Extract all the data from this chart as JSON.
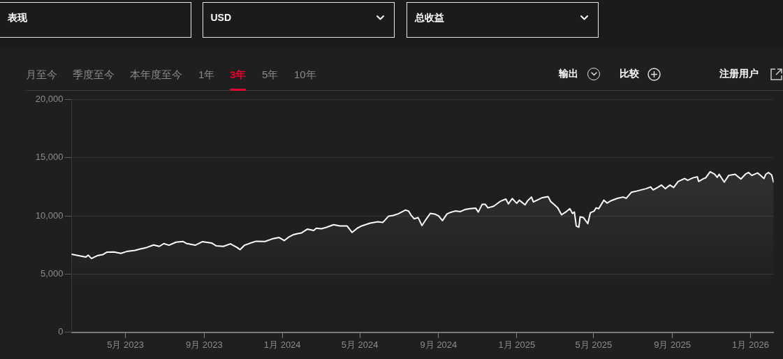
{
  "chart_data": {
    "type": "area",
    "x": [
      "2023-02-06",
      "2023-02-21",
      "2023-02-28",
      "2023-03-04",
      "2023-03-09",
      "2023-03-18",
      "2023-03-27",
      "2023-04-02",
      "2023-04-13",
      "2023-04-24",
      "2023-05-03",
      "2023-05-16",
      "2023-05-23",
      "2023-06-03",
      "2023-06-14",
      "2023-06-23",
      "2023-06-30",
      "2023-07-08",
      "2023-07-19",
      "2023-07-30",
      "2023-08-04",
      "2023-08-18",
      "2023-08-29",
      "2023-09-13",
      "2023-09-20",
      "2023-10-01",
      "2023-10-12",
      "2023-10-22",
      "2023-10-27",
      "2023-11-03",
      "2023-11-13",
      "2023-11-21",
      "2023-12-05",
      "2023-12-16",
      "2023-12-27",
      "2024-01-04",
      "2024-01-11",
      "2024-01-18",
      "2024-01-25",
      "2024-01-31",
      "2024-02-09",
      "2024-02-19",
      "2024-02-23",
      "2024-03-02",
      "2024-03-09",
      "2024-03-21",
      "2024-03-31",
      "2024-04-11",
      "2024-04-19",
      "2024-04-27",
      "2024-05-04",
      "2024-05-17",
      "2024-05-29",
      "2024-06-06",
      "2024-06-15",
      "2024-06-22",
      "2024-06-30",
      "2024-07-11",
      "2024-07-16",
      "2024-07-20",
      "2024-07-25",
      "2024-07-31",
      "2024-08-06",
      "2024-08-11",
      "2024-08-19",
      "2024-08-26",
      "2024-09-01",
      "2024-09-07",
      "2024-09-14",
      "2024-09-20",
      "2024-09-27",
      "2024-10-05",
      "2024-10-12",
      "2024-10-20",
      "2024-10-29",
      "2024-11-02",
      "2024-11-08",
      "2024-11-13",
      "2024-11-17",
      "2024-11-26",
      "2024-12-06",
      "2024-12-15",
      "2024-12-19",
      "2024-12-25",
      "2025-01-01",
      "2025-01-05",
      "2025-01-14",
      "2025-01-18",
      "2025-01-24",
      "2025-01-27",
      "2025-02-04",
      "2025-02-10",
      "2025-02-19",
      "2025-02-23",
      "2025-02-28",
      "2025-03-06",
      "2025-03-12",
      "2025-03-18",
      "2025-03-25",
      "2025-03-29",
      "2025-04-01",
      "2025-04-04",
      "2025-04-08",
      "2025-04-10",
      "2025-04-15",
      "2025-04-22",
      "2025-04-26",
      "2025-05-02",
      "2025-05-05",
      "2025-05-09",
      "2025-05-17",
      "2025-05-22",
      "2025-05-28",
      "2025-06-07",
      "2025-06-16",
      "2025-06-21",
      "2025-06-29",
      "2025-07-07",
      "2025-07-22",
      "2025-07-29",
      "2025-08-02",
      "2025-08-09",
      "2025-08-15",
      "2025-08-21",
      "2025-08-28",
      "2025-09-03",
      "2025-09-10",
      "2025-09-20",
      "2025-09-25",
      "2025-10-03",
      "2025-10-10",
      "2025-10-12",
      "2025-10-20",
      "2025-10-23",
      "2025-10-30",
      "2025-11-06",
      "2025-11-10",
      "2025-11-13",
      "2025-11-21",
      "2025-11-28",
      "2025-12-08",
      "2025-12-17",
      "2025-12-24",
      "2025-12-29",
      "2026-01-03",
      "2026-01-12",
      "2026-01-16",
      "2026-01-22",
      "2026-01-25",
      "2026-01-29",
      "2026-02-03",
      "2026-02-06"
    ],
    "series": [
      {
        "color": "#ffffff",
        "values": [
          6700,
          6540,
          6460,
          6620,
          6340,
          6580,
          6680,
          6880,
          6900,
          6780,
          6940,
          7040,
          7140,
          7280,
          7500,
          7380,
          7620,
          7480,
          7740,
          7800,
          7640,
          7480,
          7780,
          7660,
          7420,
          7380,
          7600,
          7300,
          7100,
          7480,
          7680,
          7820,
          7800,
          8020,
          8140,
          7880,
          8180,
          8380,
          8480,
          8540,
          8860,
          8740,
          8940,
          8900,
          9000,
          9240,
          9140,
          9140,
          8580,
          8940,
          9140,
          9380,
          9500,
          9440,
          9980,
          10040,
          10180,
          10500,
          10420,
          10060,
          9750,
          9860,
          9170,
          9590,
          10210,
          10160,
          10000,
          9590,
          10160,
          10310,
          10420,
          10370,
          10540,
          10620,
          10660,
          10330,
          10990,
          10990,
          10690,
          10830,
          11240,
          11450,
          11030,
          11490,
          11080,
          11350,
          10950,
          11300,
          11620,
          11200,
          11410,
          11570,
          11660,
          11240,
          10990,
          10690,
          10100,
          10310,
          10620,
          10210,
          10330,
          9130,
          9030,
          9920,
          9860,
          9340,
          10270,
          10420,
          10690,
          10620,
          11350,
          11100,
          11300,
          11510,
          11620,
          11510,
          12030,
          12130,
          12340,
          12490,
          12230,
          12440,
          12650,
          12340,
          12650,
          12440,
          12960,
          13210,
          13060,
          13270,
          13360,
          12960,
          13210,
          13270,
          13790,
          13580,
          13310,
          13580,
          12900,
          13480,
          13580,
          13170,
          13580,
          13730,
          13480,
          13690,
          13520,
          13210,
          13580,
          13730,
          13520,
          12900
        ]
      }
    ],
    "xlim": [
      "2023-02-06",
      "2026-02-06"
    ],
    "xticks": [
      {
        "value": "2023-05-01",
        "label": "5月 2023"
      },
      {
        "value": "2023-09-01",
        "label": "9月 2023"
      },
      {
        "value": "2024-01-01",
        "label": "1月 2024"
      },
      {
        "value": "2024-05-01",
        "label": "5月 2024"
      },
      {
        "value": "2024-09-01",
        "label": "9月 2024"
      },
      {
        "value": "2025-01-01",
        "label": "1月 2025"
      },
      {
        "value": "2025-05-01",
        "label": "5月 2025"
      },
      {
        "value": "2025-09-01",
        "label": "9月 2025"
      },
      {
        "value": "2026-01-01",
        "label": "1月 2026"
      }
    ],
    "ylim": [
      0,
      20000
    ],
    "yticks": [
      0,
      {
        "value": 5000,
        "label": "5,000"
      },
      {
        "value": 10000,
        "label": "10,000"
      },
      {
        "value": 15000,
        "label": "15,000"
      },
      {
        "value": 20000,
        "label": "20,000"
      }
    ],
    "grid": "y",
    "annotations": [
      "表现",
      "USD",
      "总收益",
      "月至今",
      "季度至今",
      "本年度至今",
      "1年",
      "3年",
      "5年",
      "10年",
      "输出",
      "比较",
      "注册用户"
    ]
  }
}
